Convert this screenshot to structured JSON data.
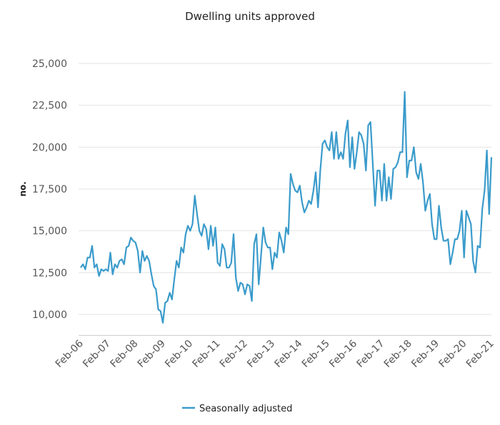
{
  "chart_data": {
    "type": "line",
    "title": "Dwelling units approved",
    "xlabel": "",
    "ylabel": "no.",
    "ylim": [
      8750,
      25000
    ],
    "yticks": [
      10000,
      12500,
      15000,
      17500,
      20000,
      22500,
      25000
    ],
    "ytick_labels": [
      "10,000",
      "12,500",
      "15,000",
      "17,500",
      "20,000",
      "22,500",
      "25,000"
    ],
    "xtick_labels": [
      "Feb-06",
      "Feb-07",
      "Feb-08",
      "Feb-09",
      "Feb-10",
      "Feb-11",
      "Feb-12",
      "Feb-13",
      "Feb-14",
      "Feb-15",
      "Feb-16",
      "Feb-17",
      "Feb-18",
      "Feb-19",
      "Feb-20",
      "Feb-21"
    ],
    "x_first": "Feb-06",
    "x_frequency": "monthly",
    "grid": true,
    "legend": "bottom",
    "series": [
      {
        "name": "Seasonally adjusted",
        "color": "#3a9bcb",
        "values": [
          12800,
          13000,
          12700,
          13400,
          13400,
          14100,
          12800,
          13000,
          12300,
          12700,
          12600,
          12700,
          12600,
          13700,
          12400,
          13000,
          12800,
          13200,
          13300,
          13000,
          14000,
          14100,
          14600,
          14400,
          14300,
          13800,
          12500,
          13800,
          13200,
          13500,
          13200,
          12400,
          11700,
          11500,
          10300,
          10200,
          9500,
          10700,
          10800,
          11300,
          10900,
          12100,
          13200,
          12800,
          14000,
          13700,
          14800,
          15300,
          15000,
          15400,
          17100,
          16000,
          15000,
          14700,
          15400,
          15100,
          13900,
          15300,
          14100,
          15200,
          13100,
          12900,
          14200,
          13900,
          12800,
          12800,
          13100,
          14800,
          12200,
          11400,
          11900,
          11800,
          11200,
          11800,
          11700,
          10800,
          14200,
          14800,
          11800,
          13500,
          15200,
          14300,
          14000,
          14000,
          12700,
          13700,
          13400,
          14900,
          14400,
          13700,
          15200,
          14800,
          18400,
          17800,
          17400,
          17300,
          17700,
          16700,
          16100,
          16400,
          16800,
          16600,
          17400,
          18500,
          16400,
          18600,
          20200,
          20400,
          20000,
          19800,
          20900,
          19300,
          20900,
          19300,
          19700,
          19300,
          20800,
          21600,
          18800,
          20600,
          18700,
          19700,
          20900,
          20700,
          20200,
          18600,
          21300,
          21500,
          19000,
          16500,
          18600,
          18600,
          16800,
          19000,
          16800,
          18200,
          16900,
          18700,
          18800,
          19100,
          19700,
          19700,
          23300,
          18200,
          19200,
          19200,
          20000,
          18500,
          18100,
          19000,
          17900,
          16200,
          16800,
          17200,
          15400,
          14500,
          14500,
          16500,
          15200,
          14400,
          14400,
          14500,
          13000,
          13700,
          14500,
          14500,
          15000,
          16200,
          13400,
          16200,
          15800,
          15400,
          13200,
          12500,
          14100,
          14000,
          16300,
          17400,
          19800,
          16000,
          19400
        ]
      }
    ]
  }
}
